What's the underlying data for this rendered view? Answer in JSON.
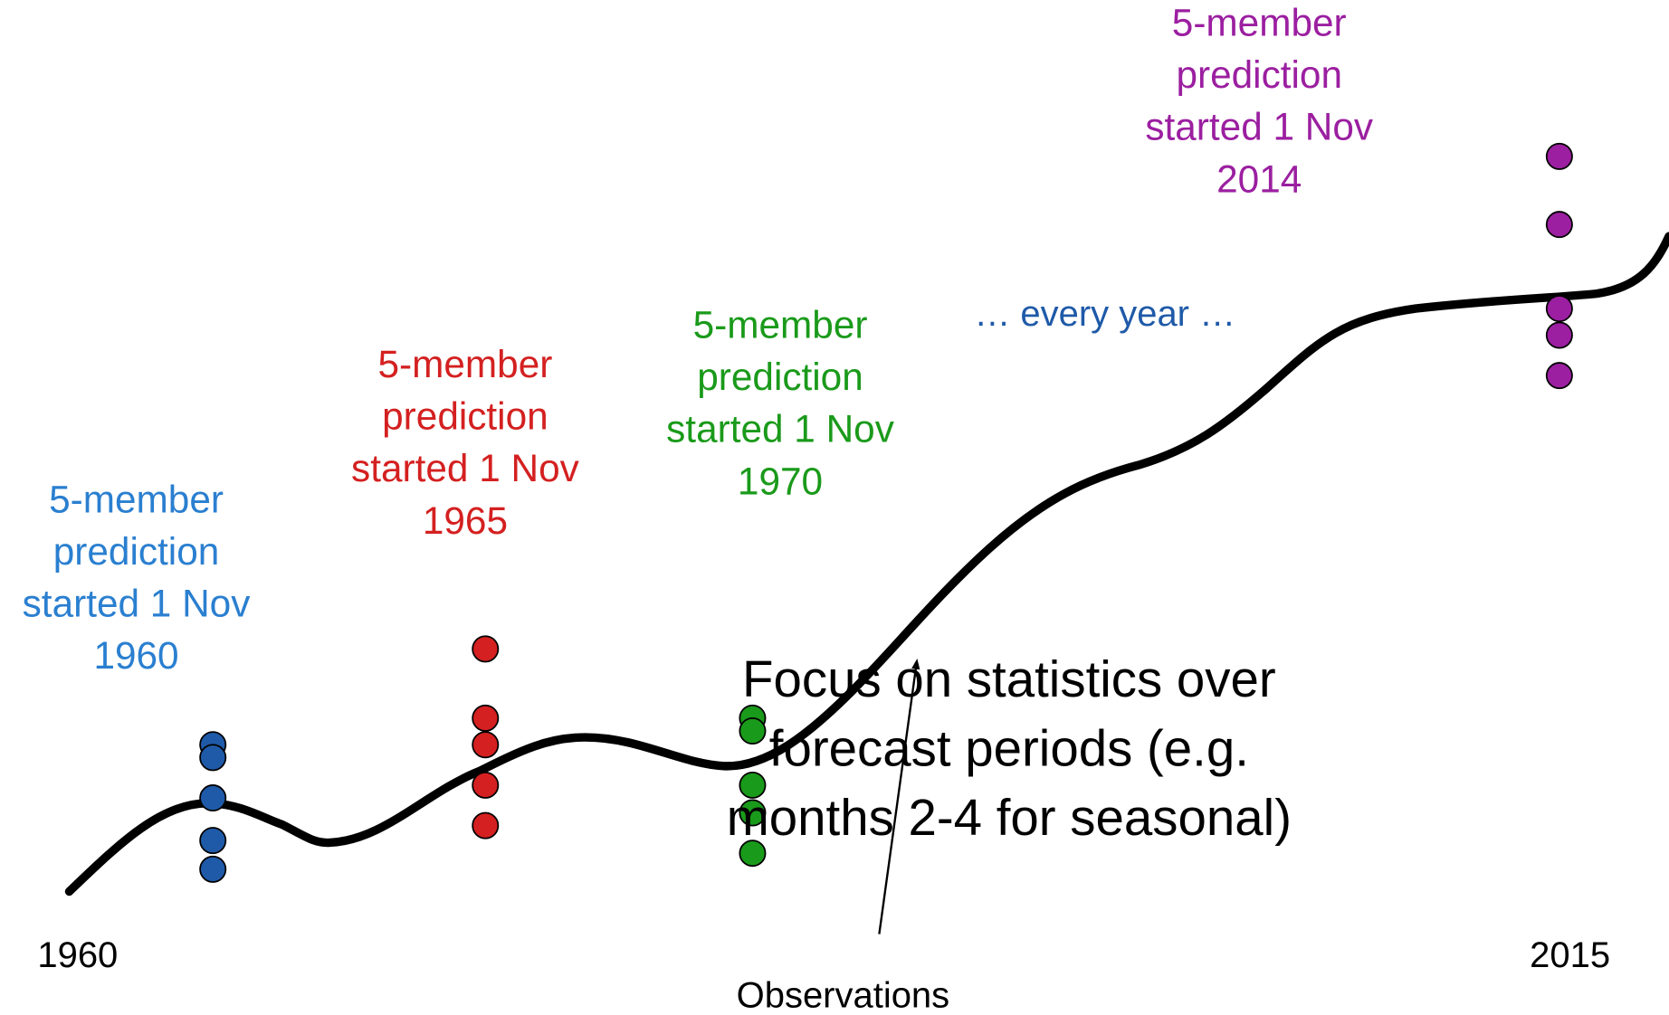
{
  "predictions": [
    {
      "lines": [
        "5-member",
        "prediction",
        "started 1 Nov",
        "1960"
      ]
    },
    {
      "lines": [
        "5-member",
        "prediction",
        "started 1 Nov",
        "1965"
      ]
    },
    {
      "lines": [
        "5-member",
        "prediction",
        "started 1 Nov",
        "1970"
      ]
    },
    {
      "lines": [
        "5-member",
        "prediction",
        "started 1 Nov",
        "2014"
      ]
    }
  ],
  "every_year": "… every year …",
  "focus": {
    "lines": [
      "Focus on statistics over",
      "forecast periods (e.g.",
      "months 2-4 for seasonal)"
    ]
  },
  "axis": {
    "start": "1960",
    "end": "2015"
  },
  "observations": "Observations"
}
